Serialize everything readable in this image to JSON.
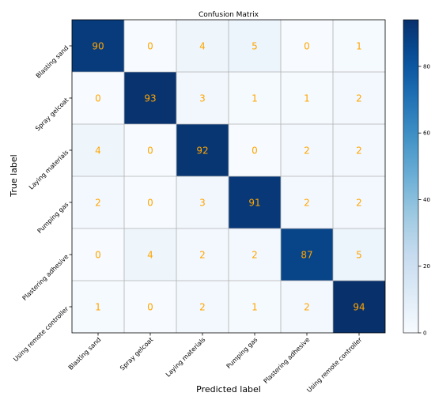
{
  "chart_data": {
    "type": "heatmap",
    "title": "Confusion Matrix",
    "xlabel": "Predicted label",
    "ylabel": "True label",
    "x_categories": [
      "Blasting sand",
      "Spray gelcoat",
      "Laying materials",
      "Pumping gas",
      "Plastering adhesive",
      "Using remote controller"
    ],
    "y_categories": [
      "Blasting sand",
      "Spray gelcoat",
      "Laying materials",
      "Pumping gas",
      "Plastering adhesive",
      "Using remote controller"
    ],
    "values": [
      [
        90,
        0,
        4,
        5,
        0,
        1
      ],
      [
        0,
        93,
        3,
        1,
        1,
        2
      ],
      [
        4,
        0,
        92,
        0,
        2,
        2
      ],
      [
        2,
        0,
        3,
        91,
        2,
        2
      ],
      [
        0,
        4,
        2,
        2,
        87,
        5
      ],
      [
        1,
        0,
        2,
        1,
        2,
        94
      ]
    ],
    "colormap": "Blues",
    "value_range": [
      0,
      94
    ],
    "colorbar_ticks": [
      0,
      20,
      40,
      60,
      80
    ],
    "annotation_color": "#ffa500",
    "grid": true
  }
}
